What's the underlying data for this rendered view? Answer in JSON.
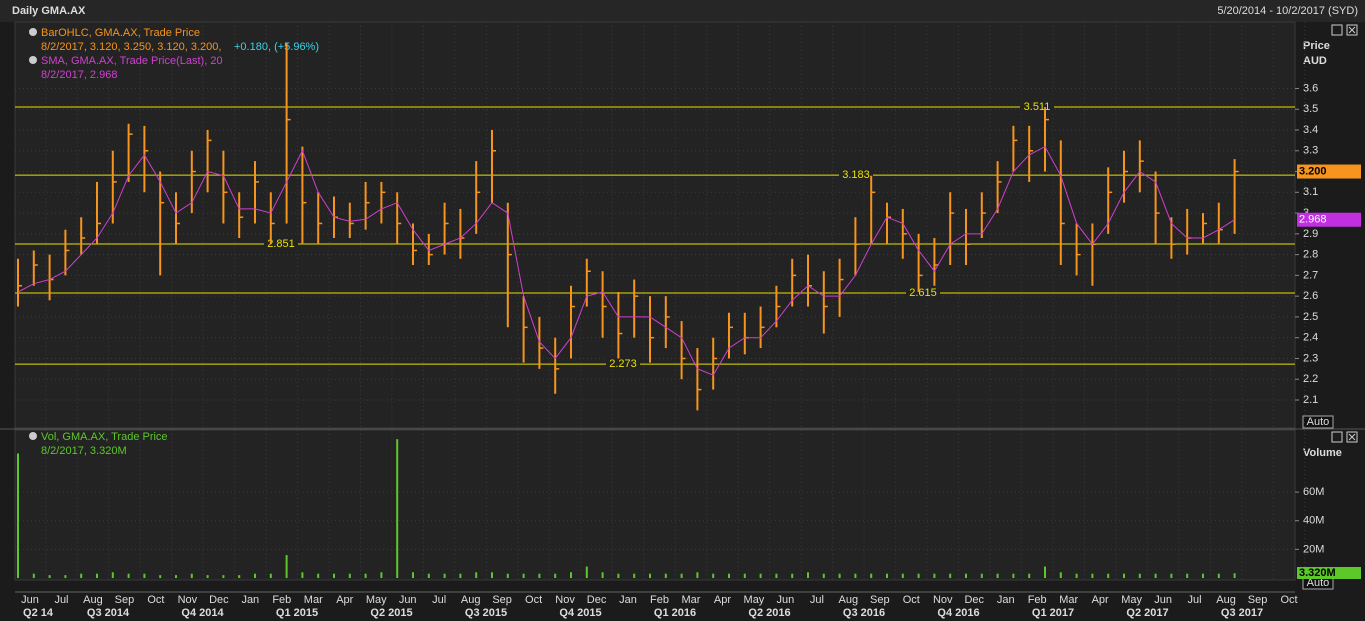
{
  "header": {
    "title": "Daily GMA.AX",
    "range": "5/20/2014 - 10/2/2017 (SYD)"
  },
  "x_axis": {
    "months": [
      "Jun",
      "Jul",
      "Aug",
      "Sep",
      "Oct",
      "Nov",
      "Dec",
      "Jan",
      "Feb",
      "Mar",
      "Apr",
      "May",
      "Jun",
      "Jul",
      "Aug",
      "Sep",
      "Oct",
      "Nov",
      "Dec",
      "Jan",
      "Feb",
      "Mar",
      "Apr",
      "May",
      "Jun",
      "Jul",
      "Aug",
      "Sep",
      "Oct",
      "Nov",
      "Dec",
      "Jan",
      "Feb",
      "Mar",
      "Apr",
      "May",
      "Jun",
      "Jul",
      "Aug",
      "Sep",
      "Oct"
    ],
    "quarters": [
      "Q2 14",
      "Q3 2014",
      "Q4 2014",
      "Q1 2015",
      "Q2 2015",
      "Q3 2015",
      "Q4 2015",
      "Q1 2016",
      "Q2 2016",
      "Q3 2016",
      "Q4 2016",
      "Q1 2017",
      "Q2 2017",
      "Q3 2017"
    ]
  },
  "chart_data": [
    {
      "type": "ohlc",
      "legend": [
        {
          "name": "BarOHLC, GMA.AX, Trade Price",
          "detail": "8/2/2017, 3.120, 3.250, 3.120, 3.200,",
          "change": "+0.180, (+5.96%)"
        },
        {
          "name": "SMA, GMA.AX, Trade Price(Last),  20",
          "detail": "8/2/2017, 2.968"
        }
      ],
      "y_label": "Price",
      "unit": "AUD",
      "scale_mode": "Auto",
      "ylim": [
        1.97,
        3.92
      ],
      "yticks": [
        2.1,
        2.2,
        2.3,
        2.4,
        2.5,
        2.6,
        2.7,
        2.8,
        2.9,
        3,
        3.1,
        3.2,
        3.3,
        3.4,
        3.5,
        3.6
      ],
      "grid": true,
      "ohlc": {
        "color": "#f7941d",
        "high": [
          2.78,
          2.82,
          2.8,
          2.92,
          2.98,
          3.15,
          3.3,
          3.43,
          3.42,
          3.2,
          3.1,
          3.3,
          3.4,
          3.3,
          3.1,
          3.25,
          3.1,
          3.82,
          3.32,
          3.1,
          3.08,
          3.05,
          3.15,
          3.15,
          3.1,
          2.95,
          2.9,
          3.05,
          3.02,
          3.25,
          3.4,
          3.05,
          2.6,
          2.5,
          2.4,
          2.65,
          2.78,
          2.72,
          2.62,
          2.68,
          2.6,
          2.6,
          2.48,
          2.35,
          2.4,
          2.52,
          2.52,
          2.55,
          2.65,
          2.78,
          2.8,
          2.72,
          2.78,
          2.98,
          3.18,
          3.05,
          3.02,
          2.9,
          2.88,
          3.1,
          3.02,
          3.1,
          3.25,
          3.42,
          3.42,
          3.51,
          3.35,
          2.95,
          2.95,
          3.22,
          3.3,
          3.35,
          3.2,
          2.98,
          3.02,
          3.0,
          3.05,
          3.26
        ],
        "low": [
          2.55,
          2.65,
          2.58,
          2.7,
          2.8,
          2.85,
          2.95,
          3.15,
          3.1,
          2.7,
          2.85,
          3.0,
          3.1,
          2.95,
          2.88,
          2.95,
          2.85,
          2.95,
          2.85,
          2.85,
          2.88,
          2.88,
          2.92,
          2.95,
          2.85,
          2.75,
          2.75,
          2.8,
          2.78,
          2.9,
          3.05,
          2.45,
          2.28,
          2.25,
          2.13,
          2.3,
          2.55,
          2.4,
          2.3,
          2.4,
          2.28,
          2.35,
          2.2,
          2.05,
          2.15,
          2.3,
          2.32,
          2.35,
          2.45,
          2.55,
          2.55,
          2.42,
          2.5,
          2.7,
          2.85,
          2.85,
          2.78,
          2.62,
          2.65,
          2.75,
          2.75,
          2.88,
          3.0,
          3.2,
          3.15,
          3.2,
          2.75,
          2.7,
          2.65,
          2.9,
          3.05,
          3.1,
          2.85,
          2.78,
          2.8,
          2.85,
          2.85,
          2.9
        ],
        "close": [
          2.65,
          2.75,
          2.68,
          2.82,
          2.88,
          2.95,
          3.15,
          3.38,
          3.3,
          3.05,
          2.95,
          3.2,
          3.35,
          3.1,
          2.98,
          3.15,
          2.95,
          3.45,
          3.05,
          2.95,
          2.98,
          2.95,
          3.05,
          3.1,
          2.95,
          2.82,
          2.8,
          2.95,
          2.88,
          3.1,
          3.3,
          2.8,
          2.45,
          2.35,
          2.25,
          2.55,
          2.72,
          2.55,
          2.42,
          2.6,
          2.4,
          2.5,
          2.3,
          2.15,
          2.3,
          2.45,
          2.4,
          2.45,
          2.55,
          2.7,
          2.65,
          2.55,
          2.68,
          2.85,
          3.1,
          2.98,
          2.9,
          2.7,
          2.75,
          3.0,
          2.85,
          3.0,
          3.15,
          3.35,
          3.3,
          3.45,
          2.95,
          2.8,
          2.85,
          3.1,
          3.2,
          3.25,
          3.0,
          2.85,
          2.88,
          2.95,
          2.92,
          3.2
        ]
      },
      "sma": {
        "color": "#d040d0",
        "values": [
          2.62,
          2.66,
          2.68,
          2.72,
          2.8,
          2.88,
          3.0,
          3.18,
          3.28,
          3.15,
          3.0,
          3.05,
          3.2,
          3.18,
          3.02,
          3.02,
          3.0,
          3.15,
          3.3,
          3.1,
          2.98,
          2.96,
          2.97,
          3.02,
          3.05,
          2.92,
          2.82,
          2.85,
          2.88,
          2.95,
          3.05,
          3.0,
          2.6,
          2.38,
          2.3,
          2.4,
          2.6,
          2.62,
          2.5,
          2.5,
          2.5,
          2.45,
          2.4,
          2.25,
          2.22,
          2.35,
          2.4,
          2.4,
          2.48,
          2.58,
          2.65,
          2.6,
          2.6,
          2.7,
          2.85,
          2.98,
          2.95,
          2.82,
          2.72,
          2.85,
          2.9,
          2.9,
          3.02,
          3.2,
          3.28,
          3.32,
          3.18,
          2.95,
          2.85,
          2.95,
          3.1,
          3.2,
          3.15,
          2.95,
          2.88,
          2.88,
          2.92,
          2.968
        ]
      },
      "hlines": {
        "color": "#e8e000",
        "values": [
          3.511,
          3.183,
          2.851,
          2.615,
          2.273
        ]
      },
      "last_price": {
        "value": 3.2,
        "label": "3.200"
      },
      "last_sma": 2.968
    },
    {
      "type": "bar",
      "legend": [
        {
          "name": "Vol, GMA.AX, Trade Price",
          "detail": "8/2/2017, 3.320M"
        }
      ],
      "y_label": "Volume",
      "scale_mode": "Auto",
      "color": "#5cc82a",
      "ylim": [
        0,
        102
      ],
      "yticks": [
        {
          "value": 20,
          "label": "20M"
        },
        {
          "value": 40,
          "label": "40M"
        },
        {
          "value": 60,
          "label": "60M"
        }
      ],
      "values": [
        87,
        3,
        2,
        2,
        3,
        3,
        4,
        3,
        3,
        2,
        2,
        3,
        2,
        2,
        2,
        3,
        3,
        16,
        4,
        3,
        3,
        3,
        3,
        4,
        97,
        4,
        3,
        3,
        3,
        4,
        4,
        3,
        3,
        3,
        3,
        4,
        8,
        4,
        3,
        3,
        3,
        3,
        3,
        4,
        3,
        3,
        3,
        3,
        3,
        3,
        4,
        3,
        3,
        3,
        3,
        3,
        3,
        3,
        3,
        3,
        3,
        3,
        3,
        3,
        3,
        8,
        4,
        3,
        3,
        3,
        3,
        3,
        3,
        3,
        3,
        3,
        3,
        3.32
      ],
      "last": {
        "value": 3.32,
        "label": "3.320M"
      }
    }
  ]
}
